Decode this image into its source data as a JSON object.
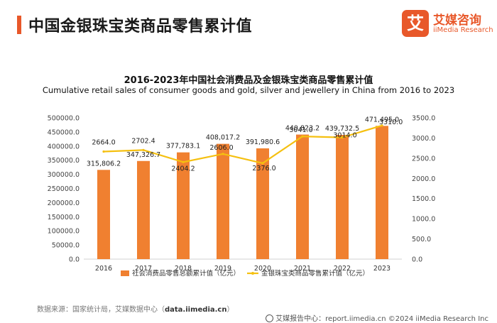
{
  "header": {
    "title": "中国金银珠宝类商品零售累计值",
    "logo_mark": "艾",
    "logo_cn": "艾媒咨询",
    "logo_en": "iiMedia Research"
  },
  "chart_data": {
    "type": "bar",
    "title": "2016-2023年中国社会消费品及金银珠宝类商品零售累计值",
    "subtitle": "Cumulative retail sales of consumer goods and gold, silver and jewellery in China from 2016 to 2023",
    "categories": [
      "2016",
      "2017",
      "2018",
      "2019",
      "2020",
      "2021",
      "2022",
      "2023"
    ],
    "series": [
      {
        "name": "社会消费品零售总额累计值（亿元）",
        "type": "bar",
        "axis": "left",
        "color": "#f08030",
        "values": [
          315806.2,
          347326.7,
          377783.1,
          408017.2,
          391980.6,
          440823.2,
          439732.5,
          471495.0
        ],
        "labels": [
          "315,806.2",
          "347,326.7",
          "377,783.1",
          "408,017.2",
          "391,980.6",
          "440,823.2",
          "439,732.5",
          "471,495.0"
        ]
      },
      {
        "name": "金银珠宝类商品零售累计值（亿元）",
        "type": "line",
        "axis": "right",
        "color": "#f5c010",
        "values": [
          2664.0,
          2702.4,
          2404.2,
          2606.0,
          2376.0,
          3041.0,
          3014.0,
          3310.0
        ],
        "labels": [
          "2664.0",
          "2702.4",
          "2404.2",
          "2606.0",
          "2376.0",
          "3041.0",
          "3014.0",
          "3310.0"
        ]
      }
    ],
    "y_left": {
      "range": [
        0,
        500000
      ],
      "ticks": [
        "0.0",
        "50000.0",
        "100000.0",
        "150000.0",
        "200000.0",
        "250000.0",
        "300000.0",
        "350000.0",
        "400000.0",
        "450000.0",
        "500000.0"
      ]
    },
    "y_right": {
      "range": [
        0,
        3500
      ],
      "ticks": [
        "0.0",
        "500.0",
        "1000.0",
        "1500.0",
        "2000.0",
        "2500.0",
        "3000.0",
        "3500.0"
      ]
    },
    "grid": false,
    "legend": "bottom"
  },
  "footer": {
    "source_prefix": "数据来源：国家统计局，艾媒数据中心（",
    "source_site": "data.iimedia.cn",
    "source_suffix": "）",
    "right_text": "艾媒报告中心：report.iimedia.cn    ©2024  iiMedia Research  Inc"
  }
}
